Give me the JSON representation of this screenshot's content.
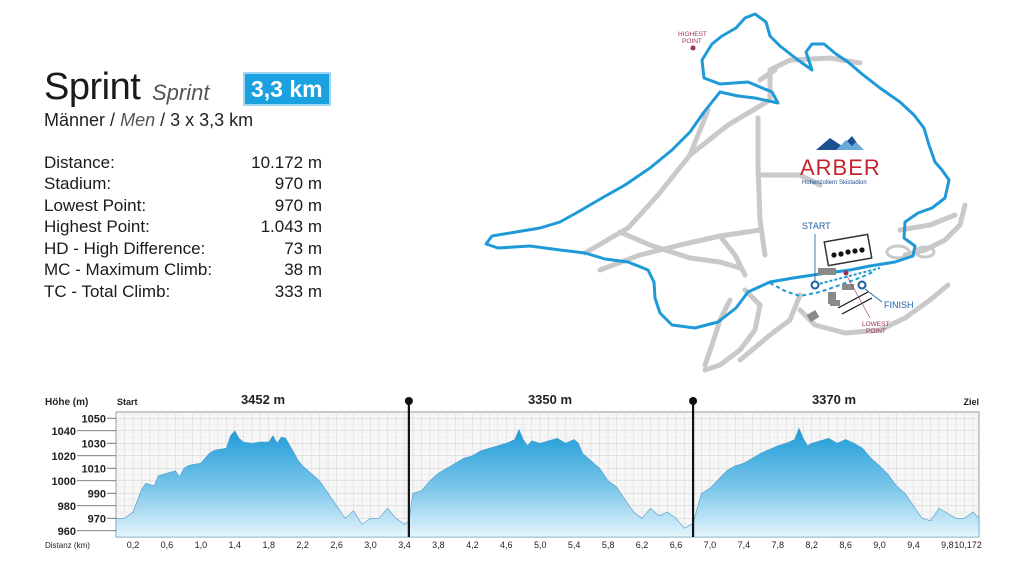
{
  "header": {
    "title": "Sprint",
    "title_translation": "Sprint",
    "badge": "3,3 km",
    "subtitle_de": "Männer",
    "subtitle_sep": "/",
    "subtitle_en": "Men",
    "subtitle_rest": "/ 3 x 3,3 km"
  },
  "stats": [
    {
      "label": "Distance:",
      "value": "10.172 m"
    },
    {
      "label": "Stadium:",
      "value": "970 m"
    },
    {
      "label": "Lowest Point:",
      "value": "970 m"
    },
    {
      "label": "Highest Point:",
      "value": "1.043 m"
    },
    {
      "label": "HD - High Difference:",
      "value": "73 m"
    },
    {
      "label": "MC - Maximum Climb:",
      "value": "38 m"
    },
    {
      "label": "TC - Total Climb:",
      "value": "333 m"
    }
  ],
  "map": {
    "labels": {
      "highest_point": [
        "HIGHEST",
        "POINT"
      ],
      "start": "START",
      "finish": "FINISH",
      "lowest_point": [
        "LOWEST",
        "POINT"
      ],
      "logo": "ARBER",
      "logo_sub": "Hohenzollern Skistadion"
    },
    "colors": {
      "route": "#1e9ad6",
      "trail": "#c8c8c8",
      "marker": "#9b2f5d",
      "logo": "#c7232d"
    }
  },
  "chart_data": {
    "type": "area",
    "ylabel": "Höhe (m)",
    "xlabel": "Distanz (km)",
    "start_label": "Start",
    "finish_label": "Ziel",
    "ylim": [
      955,
      1055
    ],
    "yticks_left": [
      960,
      980,
      1000,
      1020,
      1040
    ],
    "yticks_right": [
      970,
      990,
      1010,
      1030,
      1050
    ],
    "xlim": [
      0,
      10.172
    ],
    "xticks": [
      "0,2",
      "0,6",
      "1,0",
      "1,4",
      "1,8",
      "2,2",
      "2,6",
      "3,0",
      "3,4",
      "3,8",
      "4,2",
      "4,6",
      "5,0",
      "5,4",
      "5,8",
      "6,2",
      "6,6",
      "7,0",
      "7,4",
      "7,8",
      "8,2",
      "8,6",
      "9,0",
      "9,4",
      "9,8"
    ],
    "xtick_values": [
      0.2,
      0.6,
      1.0,
      1.4,
      1.8,
      2.2,
      2.6,
      3.0,
      3.4,
      3.8,
      4.2,
      4.6,
      5.0,
      5.4,
      5.8,
      6.2,
      6.6,
      7.0,
      7.4,
      7.8,
      8.2,
      8.6,
      9.0,
      9.4,
      9.8
    ],
    "end_label": "10,172",
    "grid": true,
    "laps": [
      {
        "label": "3452 m",
        "start_km": 0.0,
        "end_km": 3.452
      },
      {
        "label": "3350 m",
        "start_km": 3.452,
        "end_km": 6.802
      },
      {
        "label": "3370 m",
        "start_km": 6.802,
        "end_km": 10.172
      }
    ],
    "series": [
      {
        "x": [
          0.0,
          0.1,
          0.2,
          0.3,
          0.35,
          0.45,
          0.5,
          0.6,
          0.7,
          0.75,
          0.8,
          0.85,
          0.9,
          1.0,
          1.05,
          1.1,
          1.15,
          1.2,
          1.3,
          1.35,
          1.4,
          1.45,
          1.5,
          1.6,
          1.7,
          1.8,
          1.85,
          1.9,
          1.95,
          2.0,
          2.05,
          2.1,
          2.15,
          2.2,
          2.3,
          2.4,
          2.5,
          2.6,
          2.7,
          2.8,
          2.9,
          3.0,
          3.1,
          3.2,
          3.3,
          3.4,
          3.452,
          3.5,
          3.6,
          3.7,
          3.8,
          3.9,
          4.0,
          4.1,
          4.2,
          4.3,
          4.4,
          4.5,
          4.6,
          4.7,
          4.75,
          4.8,
          4.85,
          4.9,
          5.0,
          5.1,
          5.2,
          5.3,
          5.4,
          5.45,
          5.5,
          5.6,
          5.7,
          5.8,
          5.9,
          6.0,
          6.1,
          6.2,
          6.3,
          6.4,
          6.5,
          6.6,
          6.7,
          6.802,
          6.9,
          7.0,
          7.1,
          7.2,
          7.3,
          7.4,
          7.5,
          7.6,
          7.7,
          7.8,
          7.9,
          8.0,
          8.05,
          8.1,
          8.15,
          8.2,
          8.3,
          8.4,
          8.5,
          8.6,
          8.7,
          8.8,
          8.9,
          9.0,
          9.1,
          9.2,
          9.3,
          9.4,
          9.5,
          9.6,
          9.7,
          9.8,
          9.9,
          10.0,
          10.1,
          10.172
        ],
        "y": [
          970,
          970,
          975,
          993,
          998,
          996,
          1004,
          1006,
          1008,
          1003,
          1010,
          1012,
          1013,
          1014,
          1018,
          1022,
          1024,
          1025,
          1026,
          1036,
          1040,
          1034,
          1031,
          1030,
          1031,
          1031,
          1036,
          1030,
          1035,
          1034,
          1028,
          1022,
          1016,
          1012,
          1006,
          1000,
          990,
          980,
          970,
          976,
          965,
          970,
          970,
          978,
          970,
          965,
          968,
          990,
          992,
          1000,
          1006,
          1010,
          1014,
          1018,
          1020,
          1024,
          1026,
          1028,
          1030,
          1033,
          1041,
          1033,
          1028,
          1032,
          1030,
          1032,
          1034,
          1030,
          1033,
          1030,
          1022,
          1016,
          1010,
          1000,
          995,
          985,
          975,
          970,
          978,
          972,
          975,
          970,
          962,
          966,
          990,
          994,
          1001,
          1008,
          1012,
          1014,
          1018,
          1022,
          1025,
          1028,
          1030,
          1033,
          1042,
          1034,
          1028,
          1030,
          1032,
          1034,
          1030,
          1033,
          1030,
          1026,
          1018,
          1012,
          1005,
          996,
          990,
          980,
          970,
          968,
          978,
          974,
          970,
          970,
          975,
          970
        ]
      }
    ]
  }
}
